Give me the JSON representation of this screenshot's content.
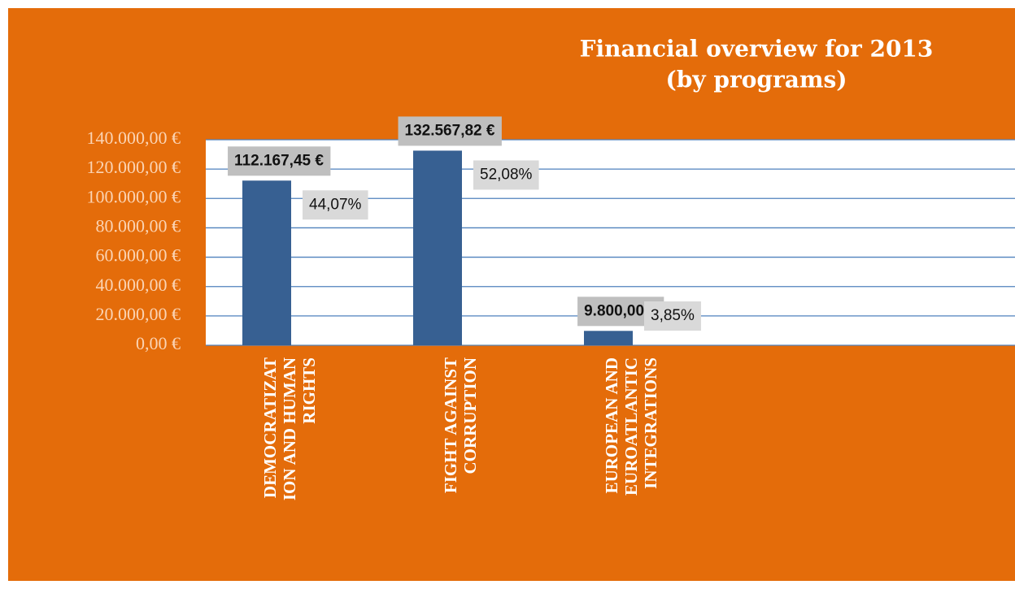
{
  "chart_data": {
    "type": "bar",
    "title": [
      "Financial overview for 2013",
      "(by  programs)"
    ],
    "categories": [
      [
        "DEMOCRATIZAT",
        "ION AND HUMAN",
        "RIGHTS"
      ],
      [
        "FIGHT AGAINST",
        "CORRUPTION"
      ],
      [
        "EUROPEAN AND",
        "EUROATLANTIC",
        "INTEGRATIONS"
      ]
    ],
    "series": [
      {
        "color": "#376092",
        "values": [
          112167.45,
          132567.82,
          9800
        ],
        "value_labels": [
          "112.167,45 €",
          "132.567,82 €",
          "9.800,00 €"
        ]
      },
      {
        "color": "#9bbb59",
        "values": [
          44.07,
          52.08,
          3.85
        ],
        "value_labels": [
          "44,07%",
          "52,08%",
          "3,85%"
        ]
      }
    ],
    "ylim": [
      0,
      140000
    ],
    "yticks": [
      {
        "value": 0,
        "label": "0,00 €"
      },
      {
        "value": 20000,
        "label": "20.000,00 €"
      },
      {
        "value": 40000,
        "label": "40.000,00 €"
      },
      {
        "value": 60000,
        "label": "60.000,00 €"
      },
      {
        "value": 80000,
        "label": "80.000,00 €"
      },
      {
        "value": 100000,
        "label": "100.000,00 €"
      },
      {
        "value": 120000,
        "label": "120.000,00 €"
      },
      {
        "value": 140000,
        "label": "140.000,00 €"
      }
    ],
    "grid": true
  }
}
